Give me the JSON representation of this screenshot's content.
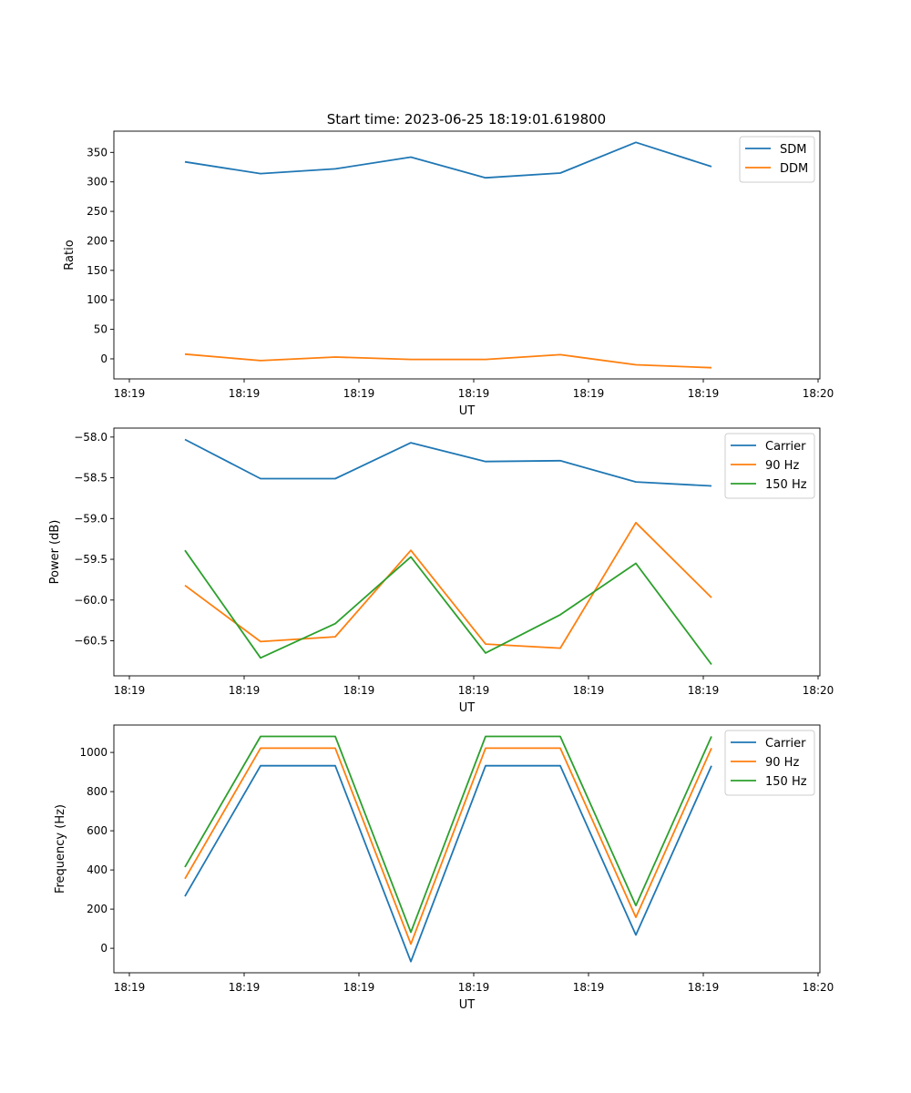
{
  "figure": {
    "title": "Start time: 2023-06-25 18:19:01.619800"
  },
  "chart_data": [
    {
      "type": "line",
      "xlabel": "UT",
      "ylabel": "Ratio",
      "x_tick_labels": [
        "18:19",
        "18:19",
        "18:19",
        "18:19",
        "18:19",
        "18:19",
        "18:20"
      ],
      "y_ticks": [
        0,
        50,
        100,
        150,
        200,
        250,
        300,
        350
      ],
      "ylim": [
        -34,
        386
      ],
      "x": [
        0,
        1,
        2,
        3,
        4,
        5,
        6,
        7
      ],
      "series": [
        {
          "name": "SDM",
          "color": "#1f77b4",
          "values": [
            334,
            314,
            322,
            342,
            307,
            315,
            367,
            326
          ]
        },
        {
          "name": "DDM",
          "color": "#ff7f0e",
          "values": [
            8,
            -3,
            3,
            -1,
            -1,
            7,
            -10,
            -15
          ]
        }
      ],
      "legend": "top-right",
      "grid": false
    },
    {
      "type": "line",
      "xlabel": "UT",
      "ylabel": "Power (dB)",
      "x_tick_labels": [
        "18:19",
        "18:19",
        "18:19",
        "18:19",
        "18:19",
        "18:19",
        "18:20"
      ],
      "y_ticks": [
        -58.0,
        -58.5,
        -59.0,
        -59.5,
        -60.0,
        -60.5
      ],
      "y_tick_labels": [
        "−58.0",
        "−58.5",
        "−59.0",
        "−59.5",
        "−60.0",
        "−60.5"
      ],
      "ylim": [
        -60.93,
        -57.89
      ],
      "x": [
        0,
        1,
        2,
        3,
        4,
        5,
        6,
        7
      ],
      "series": [
        {
          "name": "Carrier",
          "color": "#1f77b4",
          "values": [
            -58.03,
            -58.51,
            -58.51,
            -58.07,
            -58.3,
            -58.29,
            -58.55,
            -58.6
          ]
        },
        {
          "name": "90 Hz",
          "color": "#ff7f0e",
          "values": [
            -59.82,
            -60.51,
            -60.45,
            -59.39,
            -60.54,
            -60.59,
            -59.05,
            -59.97
          ]
        },
        {
          "name": "150 Hz",
          "color": "#2ca02c",
          "values": [
            -59.39,
            -60.71,
            -60.29,
            -59.47,
            -60.65,
            -60.18,
            -59.55,
            -60.79
          ]
        }
      ],
      "legend": "top-right",
      "grid": false
    },
    {
      "type": "line",
      "xlabel": "UT",
      "ylabel": "Frequency (Hz)",
      "x_tick_labels": [
        "18:19",
        "18:19",
        "18:19",
        "18:19",
        "18:19",
        "18:19",
        "18:20"
      ],
      "y_ticks": [
        0,
        200,
        400,
        600,
        800,
        1000
      ],
      "ylim": [
        -125,
        1140
      ],
      "x": [
        0,
        1,
        2,
        3,
        4,
        5,
        6,
        7
      ],
      "series": [
        {
          "name": "Carrier",
          "color": "#1f77b4",
          "values": [
            265,
            932,
            932,
            -68,
            932,
            932,
            68,
            932
          ]
        },
        {
          "name": "90 Hz",
          "color": "#ff7f0e",
          "values": [
            355,
            1022,
            1022,
            22,
            1022,
            1022,
            158,
            1022
          ]
        },
        {
          "name": "150 Hz",
          "color": "#2ca02c",
          "values": [
            415,
            1082,
            1082,
            82,
            1082,
            1082,
            218,
            1082
          ]
        }
      ],
      "legend": "top-right",
      "grid": false
    }
  ]
}
